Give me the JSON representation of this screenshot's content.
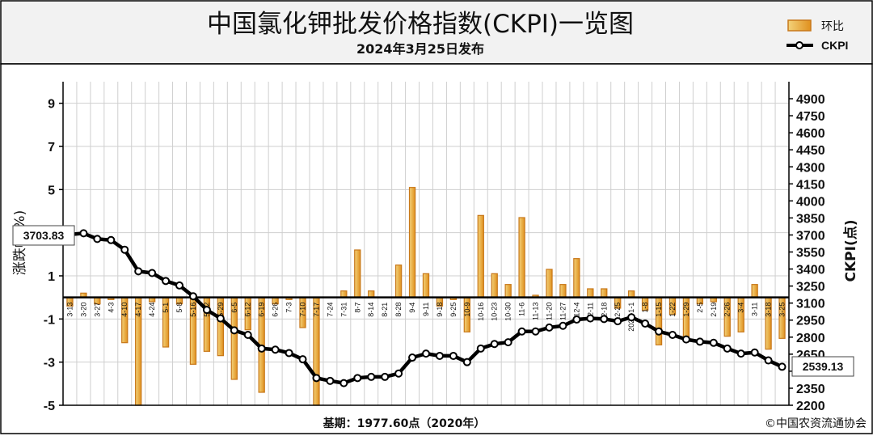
{
  "header": {
    "title": "中国氯化钾批发价格指数(CKPI)一览图",
    "subtitle": "2024年3月25日发布"
  },
  "legend": {
    "bar_label": "环比",
    "line_label": "CKPI"
  },
  "footer": {
    "base_period": "基期：1977.60点（2020年）",
    "copyright": "©中国农资流通协会"
  },
  "colors": {
    "bar_fill_start": "#f3d27a",
    "bar_fill_end": "#e0901e",
    "bar_stroke": "#c8781a",
    "line": "#000000",
    "marker_fill": "#ffffff",
    "grid": "#cfcfcf",
    "header_bg": "#f2f2f2"
  },
  "chart_data": {
    "type": "bar+line",
    "left_axis_title": "涨跌幅(%)",
    "right_axis_title": "CKPI(点)",
    "y_left": {
      "min": -5,
      "max": 10,
      "ticks": [
        "9",
        "7",
        "5",
        "3",
        "1",
        "-1",
        "-3",
        "-5"
      ],
      "tick_values": [
        9,
        7,
        5,
        3,
        1,
        -1,
        -3,
        -5
      ]
    },
    "y_right": {
      "min": 2200,
      "max": 5050,
      "ticks": [
        "2200",
        "2350",
        "2500",
        "2650",
        "2800",
        "2950",
        "3100",
        "3250",
        "3400",
        "3550",
        "3700",
        "3850",
        "4000",
        "4150",
        "4300",
        "4450",
        "4600",
        "4750",
        "4900"
      ],
      "tick_values": [
        2200,
        2350,
        2500,
        2650,
        2800,
        2950,
        3100,
        3250,
        3400,
        3550,
        3700,
        3850,
        4000,
        4150,
        4300,
        4450,
        4600,
        4750,
        4900
      ]
    },
    "bar_baseline": 0,
    "categories": [
      "3-13",
      "3-20",
      "3-27",
      "4-3",
      "4-10",
      "4-17",
      "4-24",
      "5-1",
      "5-8",
      "5-16",
      "5-22",
      "5-29",
      "6-5",
      "6-12",
      "6-19",
      "6-26",
      "7-3",
      "7-10",
      "7-17",
      "7-24",
      "7-31",
      "8-7",
      "8-14",
      "8-21",
      "8-28",
      "9-4",
      "9-11",
      "9-18",
      "9-25",
      "10-9",
      "10-16",
      "10-23",
      "10-30",
      "11-6",
      "11-13",
      "11-20",
      "11-27",
      "12-4",
      "12-11",
      "12-18",
      "12-25",
      "2024-1-1",
      "1-8",
      "1-15",
      "1-22",
      "1-29",
      "2-5",
      "2-19",
      "2-26",
      "3-4",
      "3-11",
      "3-18",
      "3-25"
    ],
    "series": [
      {
        "name": "环比",
        "type": "bar",
        "values": [
          -0.4,
          0.2,
          -0.3,
          -0.1,
          -2.1,
          -5.0,
          -0.2,
          -2.3,
          -0.3,
          -3.1,
          -2.5,
          -2.7,
          -3.8,
          -1.5,
          -4.4,
          -0.3,
          -0.1,
          -1.4,
          -5.0,
          0.0,
          0.3,
          2.2,
          0.3,
          0.0,
          1.5,
          5.1,
          1.1,
          -0.4,
          -0.1,
          -1.6,
          3.8,
          1.1,
          0.6,
          3.7,
          0.1,
          1.3,
          0.6,
          1.8,
          0.4,
          0.4,
          -0.5,
          0.3,
          -0.6,
          -2.2,
          -0.8,
          -1.9,
          -0.3,
          -0.2,
          -1.8,
          -1.6,
          0.6,
          -2.4,
          -1.9
        ]
      },
      {
        "name": "CKPI",
        "type": "line",
        "values": [
          3703.83,
          3715,
          3665,
          3655,
          3570,
          3380,
          3365,
          3295,
          3255,
          3160,
          3040,
          2965,
          2860,
          2820,
          2700,
          2690,
          2660,
          2605,
          2440,
          2415,
          2395,
          2440,
          2450,
          2450,
          2480,
          2620,
          2655,
          2635,
          2635,
          2580,
          2700,
          2740,
          2755,
          2850,
          2850,
          2885,
          2900,
          2955,
          2965,
          2960,
          2940,
          2975,
          2920,
          2850,
          2820,
          2780,
          2760,
          2750,
          2700,
          2655,
          2665,
          2595,
          2539.13
        ]
      }
    ],
    "callouts": {
      "start_value": "3703.83",
      "end_value": "2539.13"
    },
    "grid": true,
    "legend_position": "top-right"
  }
}
